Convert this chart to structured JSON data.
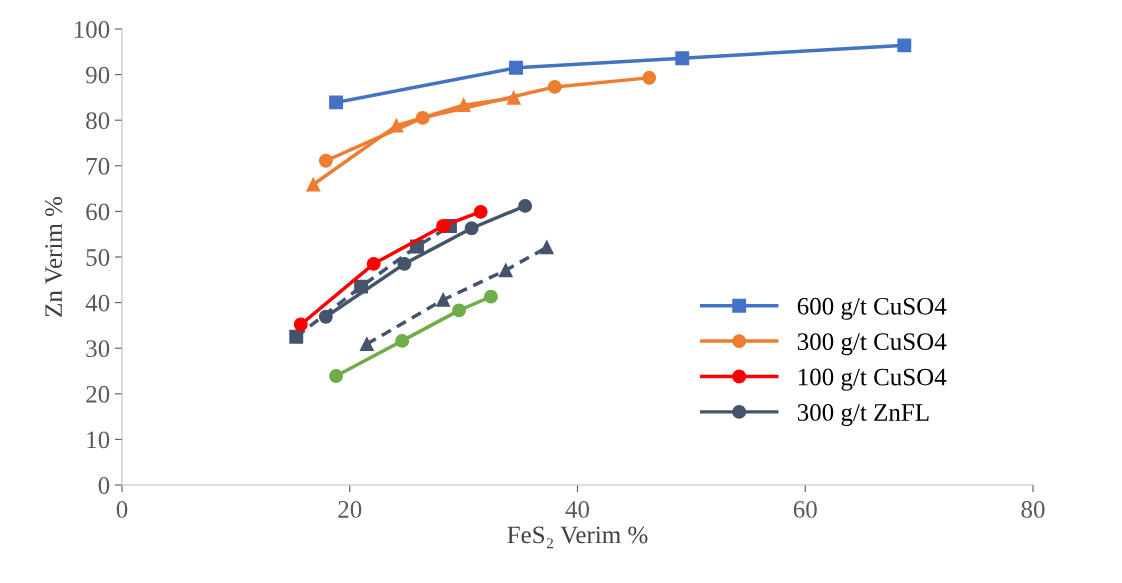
{
  "chart_data": {
    "type": "line",
    "xlabel": "FeS₂ Verim %",
    "ylabel": "Zn Verim %",
    "xlim": [
      0,
      80
    ],
    "xticks": [
      0,
      20,
      40,
      60,
      80
    ],
    "ylim": [
      0,
      100
    ],
    "yticks": [
      0,
      10,
      20,
      30,
      40,
      50,
      60,
      70,
      80,
      90,
      100
    ],
    "grid": false,
    "legend": "bottom right",
    "series": [
      {
        "name": "600 g/t CuSO4",
        "color": "#4472c4",
        "marker": "square",
        "line_style": "solid",
        "x": [
          18.8,
          34.6,
          49.2,
          68.7
        ],
        "values": [
          83.9,
          91.5,
          93.6,
          96.4
        ]
      },
      {
        "name": "300 g/t CuSO4",
        "color": "#ed7d31",
        "marker": "circle",
        "line_style": "solid",
        "x": [
          17.9,
          26.4,
          38.0,
          46.3
        ],
        "values": [
          71.1,
          80.5,
          87.3,
          89.3
        ]
      },
      {
        "name": "100 g/t CuSO4",
        "color": "#ff0000",
        "marker": "circle",
        "line_style": "solid",
        "x": [
          15.7,
          22.1,
          28.2,
          31.5
        ],
        "values": [
          35.2,
          48.5,
          56.8,
          59.9
        ]
      },
      {
        "name": "300 g/t ZnFL",
        "color": "#44546a",
        "marker": "circle",
        "line_style": "solid",
        "x": [
          17.9,
          24.8,
          30.7,
          35.4
        ],
        "values": [
          36.9,
          48.5,
          56.3,
          61.2
        ]
      },
      {
        "color": "#ed7d31",
        "marker": "triangle",
        "line_style": "solid",
        "x": [
          16.8,
          24.1,
          30.0,
          34.4
        ],
        "values": [
          65.9,
          78.8,
          83.3,
          84.9
        ]
      },
      {
        "color": "#44546a",
        "marker": "square",
        "line_style": "dashed",
        "x": [
          15.3,
          21.0,
          25.9,
          28.8
        ],
        "values": [
          32.5,
          43.5,
          52.3,
          56.8
        ]
      },
      {
        "color": "#44546a",
        "marker": "triangle",
        "line_style": "dashed",
        "x": [
          21.5,
          28.2,
          33.7,
          37.3
        ],
        "values": [
          30.9,
          40.6,
          47.1,
          52.1
        ]
      },
      {
        "color": "#70ad47",
        "marker": "circle",
        "line_style": "solid",
        "x": [
          18.8,
          24.6,
          29.6,
          32.4
        ],
        "values": [
          23.9,
          31.6,
          38.3,
          41.3
        ]
      }
    ]
  }
}
